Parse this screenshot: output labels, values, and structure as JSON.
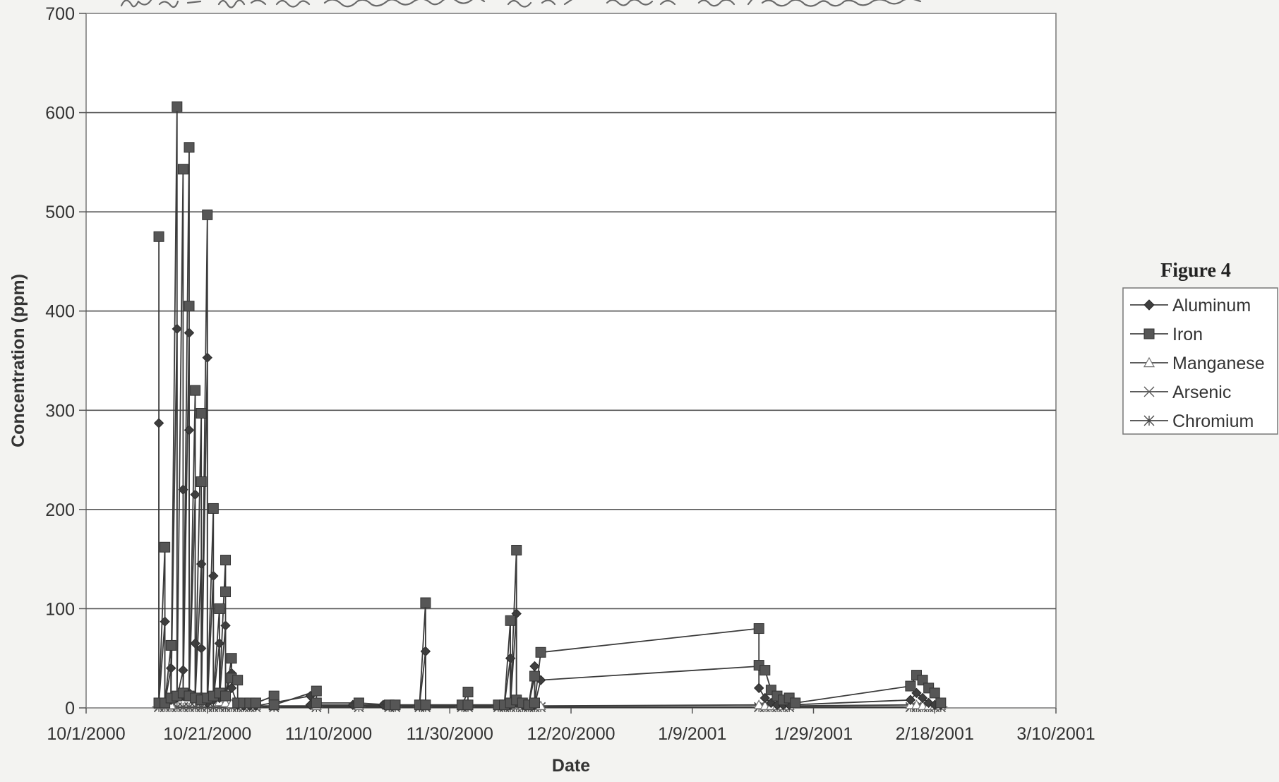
{
  "chart_data": {
    "type": "line",
    "title": "",
    "handwritten_caption": "Figure 4. Metal concentrations of leachate",
    "xlabel": "Date",
    "ylabel": "Concentration (ppm)",
    "ylim": [
      0,
      700
    ],
    "yticks": [
      0,
      100,
      200,
      300,
      400,
      500,
      600,
      700
    ],
    "xlim": [
      "2000-10-01",
      "2001-03-10"
    ],
    "xtick_labels": [
      "10/1/2000",
      "10/21/2000",
      "11/10/2000",
      "11/30/2000",
      "12/20/2000",
      "1/9/2001",
      "1/29/2001",
      "2/18/2001",
      "3/10/2001"
    ],
    "grid": "horizontal",
    "legend": {
      "title": "Figure 4",
      "placement": "right"
    },
    "series": [
      {
        "name": "Aluminum",
        "marker": "diamond",
        "points": [
          [
            "2000-10-13",
            287
          ],
          [
            "2000-10-13",
            5
          ],
          [
            "2000-10-14",
            87
          ],
          [
            "2000-10-14",
            5
          ],
          [
            "2000-10-15",
            40
          ],
          [
            "2000-10-15",
            8
          ],
          [
            "2000-10-16",
            382
          ],
          [
            "2000-10-16",
            10
          ],
          [
            "2000-10-17",
            38
          ],
          [
            "2000-10-17",
            220
          ],
          [
            "2000-10-17",
            12
          ],
          [
            "2000-10-18",
            378
          ],
          [
            "2000-10-18",
            280
          ],
          [
            "2000-10-18",
            15
          ],
          [
            "2000-10-19",
            215
          ],
          [
            "2000-10-19",
            65
          ],
          [
            "2000-10-19",
            10
          ],
          [
            "2000-10-20",
            145
          ],
          [
            "2000-10-20",
            60
          ],
          [
            "2000-10-20",
            8
          ],
          [
            "2000-10-21",
            353
          ],
          [
            "2000-10-21",
            5
          ],
          [
            "2000-10-22",
            133
          ],
          [
            "2000-10-22",
            8
          ],
          [
            "2000-10-23",
            65
          ],
          [
            "2000-10-23",
            10
          ],
          [
            "2000-10-24",
            83
          ],
          [
            "2000-10-24",
            12
          ],
          [
            "2000-10-25",
            35
          ],
          [
            "2000-10-25",
            20
          ],
          [
            "2000-10-26",
            3
          ],
          [
            "2000-10-27",
            2
          ],
          [
            "2000-10-28",
            2
          ],
          [
            "2000-10-29",
            2
          ],
          [
            "2000-11-07",
            12
          ],
          [
            "2000-11-07",
            3
          ],
          [
            "2000-11-14",
            3
          ],
          [
            "2000-11-19",
            3
          ],
          [
            "2000-11-20",
            3
          ],
          [
            "2000-11-25",
            3
          ],
          [
            "2000-11-26",
            57
          ],
          [
            "2000-11-26",
            3
          ],
          [
            "2000-12-02",
            3
          ],
          [
            "2000-12-03",
            3
          ],
          [
            "2000-12-08",
            3
          ],
          [
            "2000-12-09",
            3
          ],
          [
            "2000-12-10",
            50
          ],
          [
            "2000-12-10",
            3
          ],
          [
            "2000-12-11",
            95
          ],
          [
            "2000-12-11",
            5
          ],
          [
            "2000-12-12",
            3
          ],
          [
            "2000-12-13",
            3
          ],
          [
            "2000-12-14",
            42
          ],
          [
            "2000-12-14",
            3
          ],
          [
            "2000-12-15",
            28
          ],
          [
            "2001-01-20",
            42
          ],
          [
            "2001-01-20",
            20
          ],
          [
            "2001-01-21",
            10
          ],
          [
            "2001-01-22",
            5
          ],
          [
            "2001-01-23",
            3
          ],
          [
            "2001-01-24",
            3
          ],
          [
            "2001-01-25",
            3
          ],
          [
            "2001-02-14",
            8
          ],
          [
            "2001-02-15",
            15
          ],
          [
            "2001-02-16",
            10
          ],
          [
            "2001-02-17",
            5
          ],
          [
            "2001-02-18",
            3
          ],
          [
            "2001-02-19",
            3
          ]
        ]
      },
      {
        "name": "Iron",
        "marker": "square",
        "points": [
          [
            "2000-10-13",
            475
          ],
          [
            "2000-10-13",
            5
          ],
          [
            "2000-10-14",
            162
          ],
          [
            "2000-10-14",
            5
          ],
          [
            "2000-10-15",
            63
          ],
          [
            "2000-10-15",
            10
          ],
          [
            "2000-10-16",
            606
          ],
          [
            "2000-10-16",
            12
          ],
          [
            "2000-10-17",
            543
          ],
          [
            "2000-10-17",
            15
          ],
          [
            "2000-10-18",
            565
          ],
          [
            "2000-10-18",
            405
          ],
          [
            "2000-10-18",
            12
          ],
          [
            "2000-10-19",
            320
          ],
          [
            "2000-10-19",
            10
          ],
          [
            "2000-10-20",
            297
          ],
          [
            "2000-10-20",
            228
          ],
          [
            "2000-10-20",
            8
          ],
          [
            "2000-10-21",
            497
          ],
          [
            "2000-10-21",
            10
          ],
          [
            "2000-10-22",
            201
          ],
          [
            "2000-10-22",
            12
          ],
          [
            "2000-10-23",
            100
          ],
          [
            "2000-10-23",
            15
          ],
          [
            "2000-10-24",
            149
          ],
          [
            "2000-10-24",
            117
          ],
          [
            "2000-10-24",
            12
          ],
          [
            "2000-10-25",
            50
          ],
          [
            "2000-10-25",
            30
          ],
          [
            "2000-10-26",
            28
          ],
          [
            "2000-10-26",
            5
          ],
          [
            "2000-10-27",
            5
          ],
          [
            "2000-10-28",
            5
          ],
          [
            "2000-10-29",
            5
          ],
          [
            "2000-11-01",
            12
          ],
          [
            "2000-11-01",
            3
          ],
          [
            "2000-11-08",
            17
          ],
          [
            "2000-11-08",
            5
          ],
          [
            "2000-11-15",
            5
          ],
          [
            "2000-11-20",
            3
          ],
          [
            "2000-11-21",
            3
          ],
          [
            "2000-11-25",
            3
          ],
          [
            "2000-11-26",
            106
          ],
          [
            "2000-11-26",
            3
          ],
          [
            "2000-12-02",
            3
          ],
          [
            "2000-12-03",
            16
          ],
          [
            "2000-12-03",
            3
          ],
          [
            "2000-12-08",
            3
          ],
          [
            "2000-12-09",
            3
          ],
          [
            "2000-12-10",
            88
          ],
          [
            "2000-12-10",
            5
          ],
          [
            "2000-12-11",
            159
          ],
          [
            "2000-12-11",
            8
          ],
          [
            "2000-12-12",
            5
          ],
          [
            "2000-12-13",
            3
          ],
          [
            "2000-12-14",
            32
          ],
          [
            "2000-12-14",
            5
          ],
          [
            "2000-12-15",
            56
          ],
          [
            "2001-01-20",
            80
          ],
          [
            "2001-01-20",
            43
          ],
          [
            "2001-01-21",
            38
          ],
          [
            "2001-01-22",
            18
          ],
          [
            "2001-01-23",
            12
          ],
          [
            "2001-01-24",
            8
          ],
          [
            "2001-01-25",
            10
          ],
          [
            "2001-01-26",
            5
          ],
          [
            "2001-02-14",
            22
          ],
          [
            "2001-02-15",
            33
          ],
          [
            "2001-02-16",
            28
          ],
          [
            "2001-02-17",
            20
          ],
          [
            "2001-02-18",
            15
          ],
          [
            "2001-02-19",
            5
          ]
        ]
      },
      {
        "name": "Manganese",
        "marker": "triangle",
        "points": [
          [
            "2000-10-13",
            3
          ],
          [
            "2000-10-14",
            3
          ],
          [
            "2000-10-15",
            3
          ],
          [
            "2000-10-16",
            12
          ],
          [
            "2000-10-17",
            12
          ],
          [
            "2000-10-18",
            12
          ],
          [
            "2000-10-19",
            12
          ],
          [
            "2000-10-20",
            12
          ],
          [
            "2000-10-21",
            10
          ],
          [
            "2000-10-22",
            8
          ],
          [
            "2000-10-23",
            6
          ],
          [
            "2000-10-24",
            5
          ],
          [
            "2000-10-25",
            4
          ],
          [
            "2000-10-26",
            3
          ],
          [
            "2000-10-27",
            2
          ],
          [
            "2000-10-28",
            2
          ],
          [
            "2000-10-29",
            2
          ],
          [
            "2000-11-01",
            2
          ],
          [
            "2000-11-08",
            2
          ],
          [
            "2000-11-15",
            2
          ],
          [
            "2000-11-20",
            2
          ],
          [
            "2000-11-21",
            2
          ],
          [
            "2000-11-25",
            2
          ],
          [
            "2000-11-26",
            2
          ],
          [
            "2000-12-02",
            2
          ],
          [
            "2000-12-03",
            2
          ],
          [
            "2000-12-08",
            2
          ],
          [
            "2000-12-09",
            2
          ],
          [
            "2000-12-10",
            2
          ],
          [
            "2000-12-11",
            3
          ],
          [
            "2000-12-12",
            2
          ],
          [
            "2000-12-13",
            2
          ],
          [
            "2000-12-14",
            2
          ],
          [
            "2000-12-15",
            2
          ],
          [
            "2001-01-20",
            3
          ],
          [
            "2001-01-21",
            2
          ],
          [
            "2001-01-22",
            2
          ],
          [
            "2001-01-23",
            2
          ],
          [
            "2001-01-24",
            2
          ],
          [
            "2001-01-25",
            2
          ],
          [
            "2001-02-14",
            3
          ],
          [
            "2001-02-15",
            3
          ],
          [
            "2001-02-16",
            2
          ],
          [
            "2001-02-17",
            2
          ],
          [
            "2001-02-18",
            2
          ],
          [
            "2001-02-19",
            2
          ]
        ]
      },
      {
        "name": "Arsenic",
        "marker": "x-arrow",
        "points": [
          [
            "2000-10-13",
            1
          ],
          [
            "2000-10-14",
            1
          ],
          [
            "2000-10-15",
            1
          ],
          [
            "2000-10-16",
            1
          ],
          [
            "2000-10-17",
            1
          ],
          [
            "2000-10-18",
            1
          ],
          [
            "2000-10-19",
            1
          ],
          [
            "2000-10-20",
            1
          ],
          [
            "2000-10-21",
            1
          ],
          [
            "2000-10-22",
            1
          ],
          [
            "2000-10-23",
            1
          ],
          [
            "2000-10-24",
            1
          ],
          [
            "2000-10-25",
            1
          ],
          [
            "2000-10-26",
            1
          ],
          [
            "2000-10-27",
            1
          ],
          [
            "2000-10-28",
            1
          ],
          [
            "2000-10-29",
            1
          ],
          [
            "2000-11-01",
            1
          ],
          [
            "2000-11-08",
            1
          ],
          [
            "2000-11-15",
            1
          ],
          [
            "2000-11-20",
            1
          ],
          [
            "2000-11-21",
            1
          ],
          [
            "2000-11-25",
            1
          ],
          [
            "2000-11-26",
            1
          ],
          [
            "2000-12-02",
            1
          ],
          [
            "2000-12-03",
            1
          ],
          [
            "2000-12-08",
            1
          ],
          [
            "2000-12-09",
            1
          ],
          [
            "2000-12-10",
            1
          ],
          [
            "2000-12-11",
            1
          ],
          [
            "2000-12-12",
            1
          ],
          [
            "2000-12-13",
            1
          ],
          [
            "2000-12-14",
            1
          ],
          [
            "2000-12-15",
            1
          ],
          [
            "2001-01-20",
            1
          ],
          [
            "2001-01-21",
            1
          ],
          [
            "2001-01-22",
            1
          ],
          [
            "2001-01-23",
            1
          ],
          [
            "2001-01-24",
            1
          ],
          [
            "2001-01-25",
            1
          ],
          [
            "2001-02-14",
            1
          ],
          [
            "2001-02-15",
            1
          ],
          [
            "2001-02-16",
            1
          ],
          [
            "2001-02-17",
            1
          ],
          [
            "2001-02-18",
            1
          ],
          [
            "2001-02-19",
            1
          ]
        ]
      },
      {
        "name": "Chromium",
        "marker": "asterisk",
        "points": [
          [
            "2000-10-13",
            0.5
          ],
          [
            "2000-10-14",
            0.5
          ],
          [
            "2000-10-15",
            0.5
          ],
          [
            "2000-10-16",
            0.5
          ],
          [
            "2000-10-17",
            0.5
          ],
          [
            "2000-10-18",
            0.5
          ],
          [
            "2000-10-19",
            0.5
          ],
          [
            "2000-10-20",
            0.5
          ],
          [
            "2000-10-21",
            0.5
          ],
          [
            "2000-10-22",
            0.5
          ],
          [
            "2000-10-23",
            0.5
          ],
          [
            "2000-10-24",
            0.5
          ],
          [
            "2000-10-25",
            0.5
          ],
          [
            "2000-10-26",
            0.5
          ],
          [
            "2000-10-27",
            0.5
          ],
          [
            "2000-10-28",
            0.5
          ],
          [
            "2000-10-29",
            0.5
          ],
          [
            "2000-11-01",
            0.5
          ],
          [
            "2000-11-08",
            0.5
          ],
          [
            "2000-11-15",
            0.5
          ],
          [
            "2000-11-20",
            0.5
          ],
          [
            "2000-11-21",
            0.5
          ],
          [
            "2000-11-25",
            0.5
          ],
          [
            "2000-11-26",
            0.5
          ],
          [
            "2000-12-02",
            0.5
          ],
          [
            "2000-12-03",
            0.5
          ],
          [
            "2000-12-08",
            0.5
          ],
          [
            "2000-12-09",
            0.5
          ],
          [
            "2000-12-10",
            0.5
          ],
          [
            "2000-12-11",
            0.5
          ],
          [
            "2000-12-12",
            0.5
          ],
          [
            "2000-12-13",
            0.5
          ],
          [
            "2000-12-14",
            0.5
          ],
          [
            "2000-12-15",
            0.5
          ],
          [
            "2001-01-20",
            0.5
          ],
          [
            "2001-01-21",
            0.5
          ],
          [
            "2001-01-22",
            0.5
          ],
          [
            "2001-01-23",
            0.5
          ],
          [
            "2001-01-24",
            0.5
          ],
          [
            "2001-01-25",
            0.5
          ],
          [
            "2001-02-14",
            0.5
          ],
          [
            "2001-02-15",
            0.5
          ],
          [
            "2001-02-16",
            0.5
          ],
          [
            "2001-02-17",
            0.5
          ],
          [
            "2001-02-18",
            0.5
          ],
          [
            "2001-02-19",
            0.5
          ]
        ]
      }
    ]
  },
  "colors": {
    "background": "#f3f3f1",
    "plot_background": "#ffffff",
    "gridline": "#555555",
    "series_line": "#3a3a3a",
    "marker_fill": "#4a4a4a",
    "text": "#333333",
    "handwriting": "#555555"
  }
}
